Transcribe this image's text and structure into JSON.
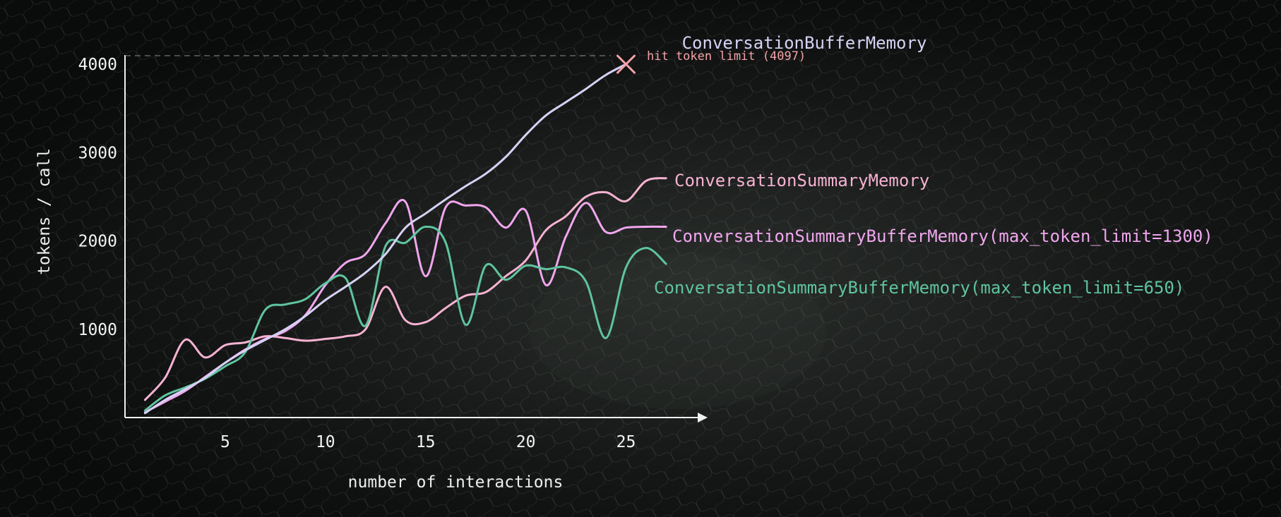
{
  "chart_data": {
    "type": "line",
    "xlabel": "number of interactions",
    "ylabel": "tokens / call",
    "xlim": [
      0,
      29
    ],
    "ylim": [
      0,
      4200
    ],
    "x_ticks": [
      5,
      10,
      15,
      20,
      25
    ],
    "y_ticks": [
      1000,
      2000,
      3000,
      4000
    ],
    "token_limit": {
      "value": 4097,
      "label": "hit token limit (4097)",
      "color": "#f2a3a8"
    },
    "grid": false,
    "legend": "inline labels at line ends",
    "series": [
      {
        "name": "ConversationBufferMemory",
        "color": "#d6d2f5",
        "x": [
          1,
          2,
          3,
          4,
          5,
          6,
          7,
          8,
          9,
          10,
          11,
          12,
          13,
          14,
          15,
          16,
          17,
          18,
          19,
          20,
          21,
          22,
          23,
          24,
          25
        ],
        "y": [
          50,
          200,
          320,
          450,
          620,
          760,
          880,
          1000,
          1150,
          1330,
          1480,
          1640,
          1850,
          2150,
          2310,
          2470,
          2620,
          2760,
          2950,
          3200,
          3420,
          3570,
          3720,
          3880,
          4000
        ]
      },
      {
        "name": "ConversationSummaryMemory",
        "color": "#f6b2d2",
        "x": [
          1,
          2,
          3,
          4,
          5,
          6,
          7,
          8,
          9,
          10,
          11,
          12,
          13,
          14,
          15,
          16,
          17,
          18,
          19,
          20,
          21,
          22,
          23,
          24,
          25,
          26,
          27
        ],
        "y": [
          200,
          450,
          880,
          680,
          820,
          850,
          920,
          900,
          870,
          890,
          920,
          1000,
          1480,
          1100,
          1080,
          1240,
          1380,
          1420,
          1600,
          1780,
          2120,
          2280,
          2500,
          2550,
          2450,
          2680,
          2710
        ]
      },
      {
        "name": "ConversationSummaryBufferMemory(max_token_limit=1300)",
        "color": "#f0a6ee",
        "x": [
          1,
          2,
          3,
          4,
          5,
          6,
          7,
          8,
          9,
          10,
          11,
          12,
          13,
          14,
          15,
          16,
          17,
          18,
          19,
          20,
          21,
          22,
          23,
          24,
          25,
          26,
          27
        ],
        "y": [
          60,
          180,
          300,
          460,
          620,
          770,
          890,
          980,
          1160,
          1500,
          1750,
          1850,
          2200,
          2440,
          1600,
          2380,
          2400,
          2380,
          2150,
          2340,
          1500,
          2050,
          2430,
          2100,
          2150,
          2160,
          2160
        ]
      },
      {
        "name": "ConversationSummaryBufferMemory(max_token_limit=650)",
        "color": "#5fc4a0",
        "x": [
          1,
          2,
          3,
          4,
          5,
          6,
          7,
          8,
          9,
          10,
          11,
          12,
          13,
          14,
          15,
          16,
          17,
          18,
          19,
          20,
          21,
          22,
          23,
          24,
          25,
          26,
          27
        ],
        "y": [
          80,
          250,
          340,
          440,
          580,
          740,
          1220,
          1280,
          1340,
          1520,
          1580,
          1040,
          1940,
          1980,
          2160,
          1980,
          1050,
          1720,
          1560,
          1720,
          1680,
          1700,
          1540,
          900,
          1700,
          1920,
          1740
        ]
      }
    ]
  }
}
